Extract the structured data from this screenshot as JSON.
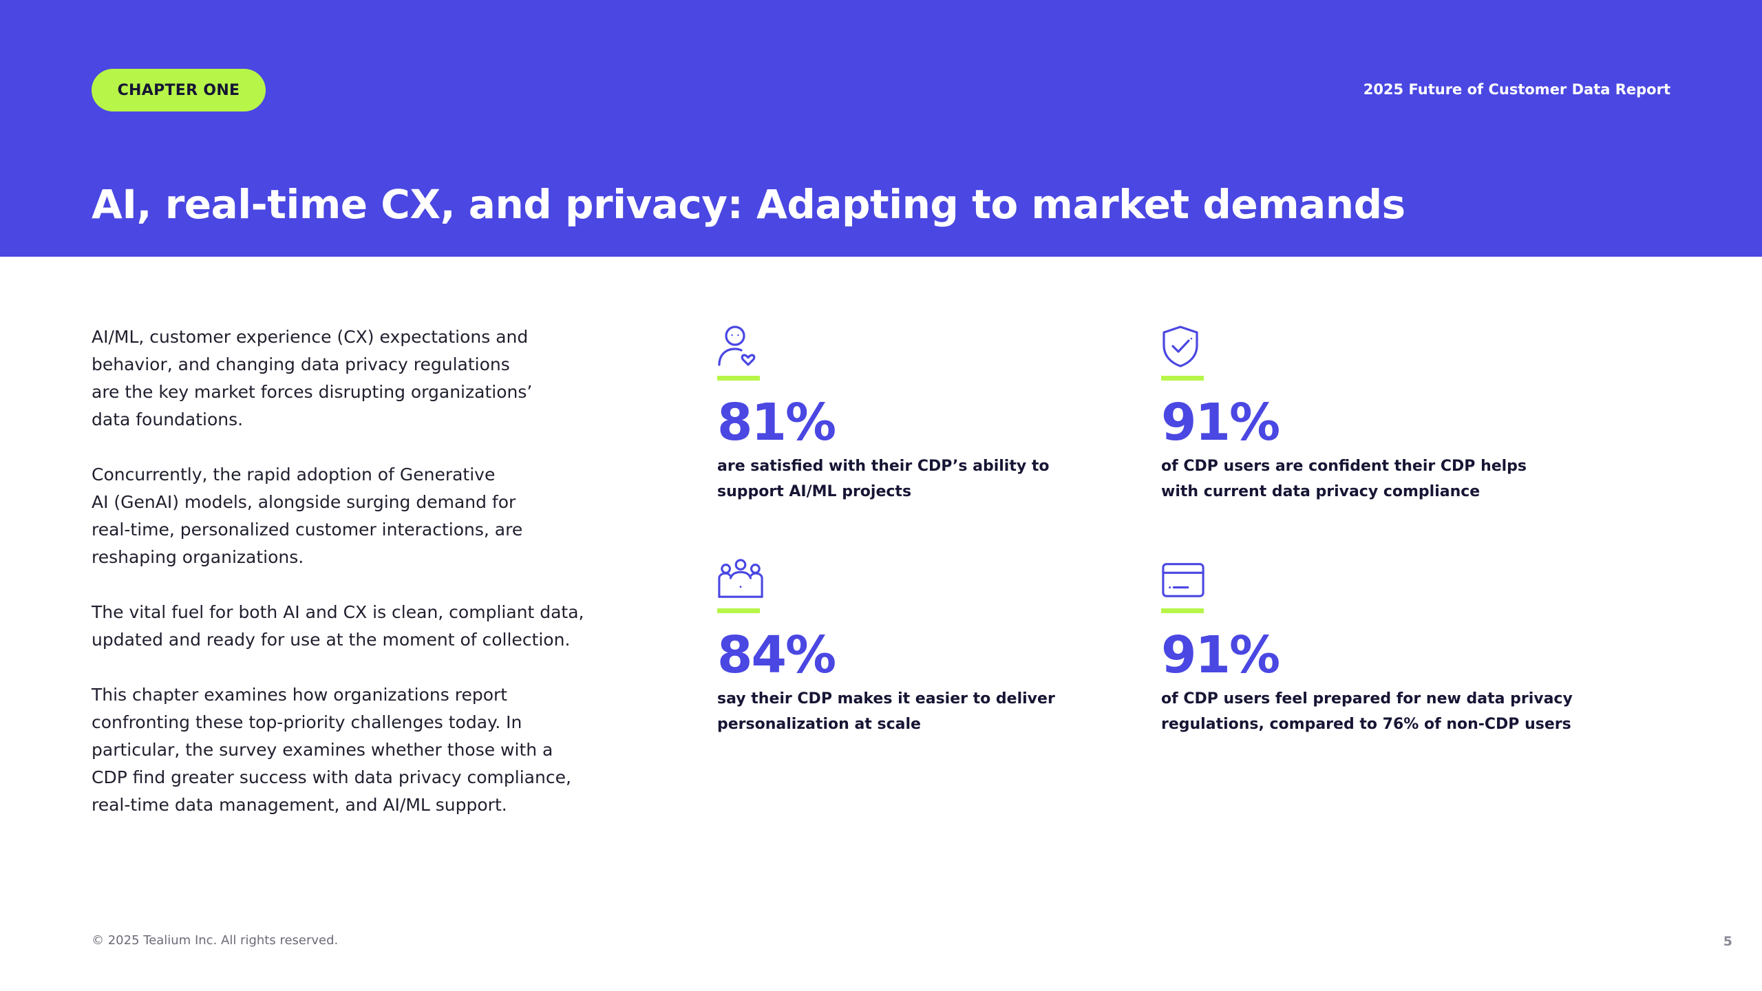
{
  "header": {
    "chapter_label": "CHAPTER ONE",
    "report_name": "2025 Future of Customer Data Report",
    "title": "AI, real-time CX, and privacy: Adapting to market demands"
  },
  "intro": {
    "paragraphs": [
      "AI/ML, customer experience (CX) expectations and\nbehavior, and changing data privacy regulations\nare the key market forces disrupting organizations’\ndata foundations.",
      "Concurrently, the rapid adoption of Generative\nAI (GenAI) models, alongside surging demand for\nreal-time, personalized customer interactions, are\nreshaping organizations.",
      "The vital fuel for both AI and CX is clean, compliant data,\nupdated and ready for use at the moment of collection.",
      "This chapter examines how organizations report\nconfronting these top-priority challenges today. In\nparticular, the survey examines whether those with a\nCDP find greater success with data privacy compliance,\nreal-time data management, and AI/ML support."
    ]
  },
  "stats": [
    {
      "icon": "person-heart-icon",
      "value": "81%",
      "caption": "are satisfied with their CDP’s ability to\nsupport AI/ML projects"
    },
    {
      "icon": "shield-check-icon",
      "value": "91%",
      "caption": "of CDP users are confident their CDP helps\nwith current data privacy compliance"
    },
    {
      "icon": "group-icon",
      "value": "84%",
      "caption": "say their CDP makes it easier to deliver\npersonalization at scale"
    },
    {
      "icon": "card-window-icon",
      "value": "91%",
      "caption": "of CDP users feel prepared for new data privacy\nregulations, compared to 76% of non-CDP users"
    }
  ],
  "footer": {
    "copyright": "© 2025 Tealium Inc. All rights reserved.",
    "page_number": "5"
  },
  "colors": {
    "brand_blue": "#4a47e2",
    "accent_green": "#b7f549",
    "dark_text": "#161534"
  }
}
